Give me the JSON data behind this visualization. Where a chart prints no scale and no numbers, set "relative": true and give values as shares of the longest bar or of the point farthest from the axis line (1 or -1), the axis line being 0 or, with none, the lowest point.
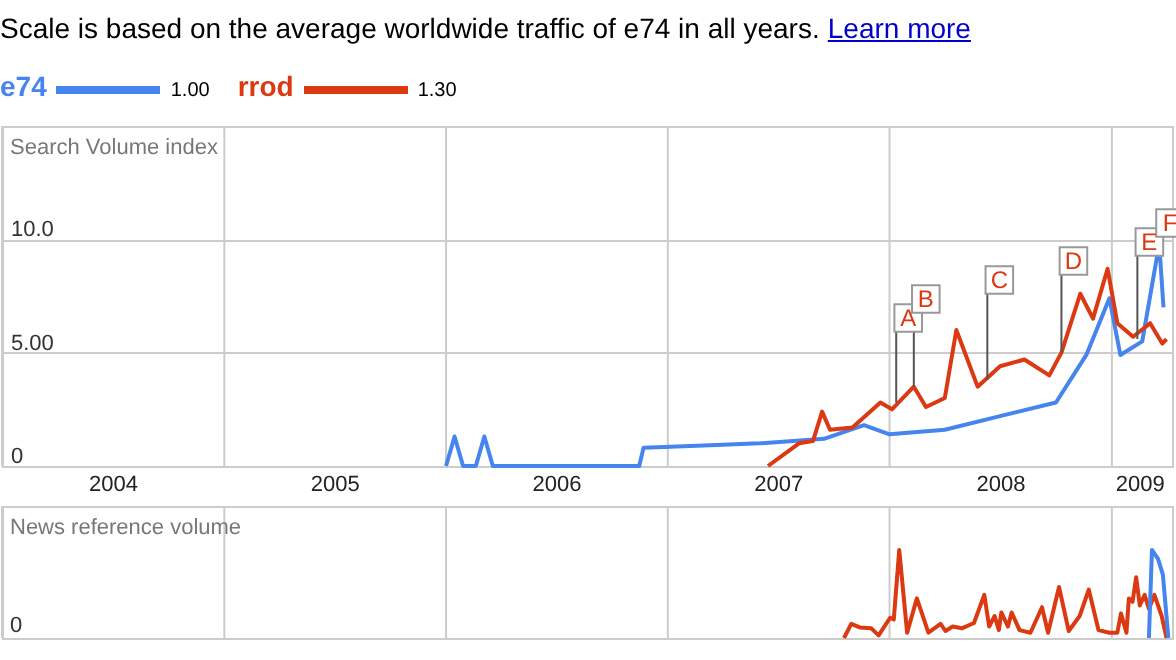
{
  "chart_data": [
    {
      "type": "line",
      "title": "Scale is based on the average worldwide traffic of e74 in all years.",
      "ylabel": "Search Volume index",
      "legend": "top left",
      "grid": true,
      "annotations": [
        "Learn more",
        "1.00",
        "1.30",
        {
          "text": "A",
          "x": "2008-01-12",
          "y": 2.8
        },
        {
          "text": "B",
          "x": "2008-02-10",
          "y": 3.5
        },
        {
          "text": "C",
          "x": "2008-06-10",
          "y": 3.8
        },
        {
          "text": "D",
          "x": "2008-10-10",
          "y": 5.0
        },
        {
          "text": "E",
          "x": "2009-02-12",
          "y": 5.6
        },
        {
          "text": "F",
          "x": "2009-03-18",
          "y": 9.8
        }
      ],
      "xlim": [
        "2004-01-01",
        "2009-04-10"
      ],
      "xticks": [
        {
          "value": "2004-01-01",
          "label": null
        },
        {
          "value": "2004-07-01",
          "label": "2004"
        },
        {
          "value": "2005-01-01",
          "label": null
        },
        {
          "value": "2005-07-01",
          "label": "2005"
        },
        {
          "value": "2006-01-01",
          "label": null
        },
        {
          "value": "2006-07-01",
          "label": "2006"
        },
        {
          "value": "2007-01-01",
          "label": null
        },
        {
          "value": "2007-07-01",
          "label": "2007"
        },
        {
          "value": "2008-01-01",
          "label": null
        },
        {
          "value": "2008-07-01",
          "label": "2008"
        },
        {
          "value": "2009-01-01",
          "label": null
        },
        {
          "value": "2009-02-15",
          "label": "2009"
        }
      ],
      "ylim": [
        0,
        15
      ],
      "yticks": [
        0,
        {
          "value": 5,
          "label": "5.00"
        },
        {
          "value": 10,
          "label": "10.0"
        }
      ],
      "series": [
        {
          "name": "e74",
          "color": "#4684ee",
          "x": [
            "2006-01-01",
            "2006-01-15",
            "2006-01-29",
            "2006-02-19",
            "2006-03-05",
            "2006-03-19",
            "2006-11-15",
            "2006-11-22",
            "2007-03-01",
            "2007-06-01",
            "2007-09-15",
            "2007-11-20",
            "2008-01-01",
            "2008-04-01",
            "2008-07-01",
            "2008-10-01",
            "2008-11-20",
            "2008-12-28",
            "2009-01-15",
            "2009-02-20",
            "2009-03-20",
            "2009-03-27"
          ],
          "values": [
            0,
            1.3,
            0,
            0,
            1.3,
            0,
            0,
            0.8,
            0.9,
            1.0,
            1.2,
            1.8,
            1.4,
            1.6,
            2.2,
            2.8,
            4.9,
            7.4,
            4.9,
            5.5,
            9.8,
            7.0
          ]
        },
        {
          "name": "rrod",
          "color": "#dc3912",
          "x": [
            "2007-06-15",
            "2007-08-05",
            "2007-08-28",
            "2007-09-12",
            "2007-09-25",
            "2007-11-01",
            "2007-12-17",
            "2008-01-05",
            "2008-02-10",
            "2008-03-01",
            "2008-04-01",
            "2008-04-20",
            "2008-05-25",
            "2008-07-01",
            "2008-08-10",
            "2008-09-20",
            "2008-10-10",
            "2008-11-10",
            "2008-12-01",
            "2008-12-25",
            "2009-01-10",
            "2009-02-05",
            "2009-03-05",
            "2009-03-25",
            "2009-04-01"
          ],
          "values": [
            0,
            1.0,
            1.1,
            2.4,
            1.6,
            1.7,
            2.8,
            2.5,
            3.5,
            2.6,
            3.0,
            6.0,
            3.5,
            4.4,
            4.7,
            4.0,
            5.0,
            7.6,
            6.5,
            8.7,
            6.3,
            5.7,
            6.3,
            5.4,
            5.6
          ]
        }
      ]
    },
    {
      "type": "line",
      "ylabel": "News reference volume",
      "relative": true,
      "grid": "x",
      "tick_labels": false,
      "annotations": [
        "0"
      ],
      "xlim": [
        "2004-01-01",
        "2009-04-10"
      ],
      "xticks": [
        {
          "value": "2004-01-01",
          "label": null
        },
        {
          "value": "2005-01-01",
          "label": null
        },
        {
          "value": "2006-01-01",
          "label": null
        },
        {
          "value": "2007-01-01",
          "label": null
        },
        {
          "value": "2008-01-01",
          "label": null
        },
        {
          "value": "2009-01-01",
          "label": null
        }
      ],
      "series": [
        {
          "color": "#dc3912",
          "x": [
            "2007-10-18",
            "2007-10-30",
            "2007-11-13",
            "2007-12-02",
            "2007-12-14",
            "2008-01-02",
            "2008-01-08",
            "2008-01-17",
            "2008-01-30",
            "2008-02-15",
            "2008-03-05",
            "2008-03-25",
            "2008-04-02",
            "2008-04-14",
            "2008-04-29",
            "2008-05-19",
            "2008-06-05",
            "2008-06-13",
            "2008-06-22",
            "2008-06-29",
            "2008-07-03",
            "2008-07-14",
            "2008-07-20",
            "2008-08-02",
            "2008-08-20",
            "2008-09-08",
            "2008-09-18",
            "2008-10-06",
            "2008-10-22",
            "2008-11-09",
            "2008-11-24",
            "2008-12-10",
            "2008-12-28",
            "2009-01-10",
            "2009-01-16",
            "2009-01-25",
            "2009-01-29",
            "2009-02-04",
            "2009-02-10",
            "2009-02-16",
            "2009-02-24",
            "2009-03-03",
            "2009-03-12",
            "2009-03-24",
            "2009-04-01"
          ],
          "values": [
            0,
            0.16,
            0.12,
            0.11,
            0.03,
            0.23,
            0.21,
            1.0,
            0.06,
            0.45,
            0.06,
            0.16,
            0.08,
            0.13,
            0.11,
            0.17,
            0.49,
            0.13,
            0.25,
            0.09,
            0.29,
            0.13,
            0.29,
            0.09,
            0.06,
            0.35,
            0.06,
            0.58,
            0.08,
            0.25,
            0.55,
            0.09,
            0.06,
            0.06,
            0.28,
            0.06,
            0.45,
            0.41,
            0.69,
            0.37,
            0.49,
            0.33,
            0.49,
            0.25,
            0
          ]
        },
        {
          "color": "#4684ee",
          "x": [
            "2009-03-03",
            "2009-03-08",
            "2009-03-18",
            "2009-03-26",
            "2009-04-04"
          ],
          "values": [
            0,
            1.0,
            0.9,
            0.72,
            0
          ]
        }
      ]
    }
  ]
}
